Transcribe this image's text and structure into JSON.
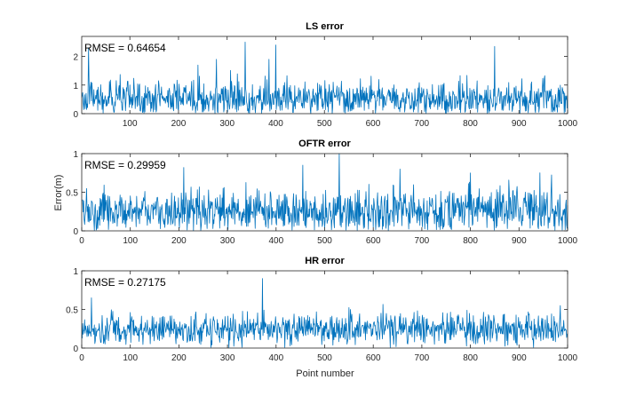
{
  "figure": {
    "ylabel": "Error(m)",
    "xlabel": "Point number"
  },
  "colors": {
    "series": "#0072BD",
    "axes": "#262626",
    "background": "#ffffff"
  },
  "chart_data": [
    {
      "type": "line",
      "title": "LS error",
      "annotation": "RMSE =  0.64654",
      "xlim": [
        1,
        1000
      ],
      "ylim": [
        0,
        2.7
      ],
      "xticks": [
        100,
        200,
        300,
        400,
        500,
        600,
        700,
        800,
        900,
        1000
      ],
      "yticks": [
        0,
        1,
        2
      ],
      "series": [
        {
          "n": 1000,
          "mean": 0.5,
          "std": 0.3,
          "spikes": [
            [
              15,
              2.3
            ],
            [
              240,
              1.7
            ],
            [
              278,
              1.9
            ],
            [
              337,
              2.5
            ],
            [
              386,
              1.9
            ],
            [
              400,
              2.4
            ],
            [
              850,
              2.35
            ]
          ]
        }
      ]
    },
    {
      "type": "line",
      "title": "OFTR error",
      "annotation": "RMSE =  0.29959",
      "xlim": [
        0,
        1000
      ],
      "ylim": [
        0,
        1
      ],
      "xticks": [
        0,
        100,
        200,
        300,
        400,
        500,
        600,
        700,
        800,
        900,
        1000
      ],
      "yticks": [
        0,
        0.5,
        1
      ],
      "series": [
        {
          "n": 1000,
          "mean": 0.25,
          "std": 0.14,
          "spikes": [
            [
              210,
              0.82
            ],
            [
              455,
              0.85
            ],
            [
              530,
              1.0
            ],
            [
              655,
              0.8
            ],
            [
              800,
              0.75
            ]
          ]
        }
      ]
    },
    {
      "type": "line",
      "title": "HR error",
      "annotation": "RMSE =  0.27175",
      "xlim": [
        0,
        1000
      ],
      "ylim": [
        0,
        1
      ],
      "xticks": [
        0,
        100,
        200,
        300,
        400,
        500,
        600,
        700,
        800,
        900,
        1000
      ],
      "yticks": [
        0,
        0.5,
        1
      ],
      "series": [
        {
          "n": 1000,
          "mean": 0.24,
          "std": 0.1,
          "spikes": [
            [
              20,
              0.65
            ],
            [
              372,
              0.9
            ],
            [
              985,
              0.55
            ]
          ]
        }
      ]
    }
  ]
}
